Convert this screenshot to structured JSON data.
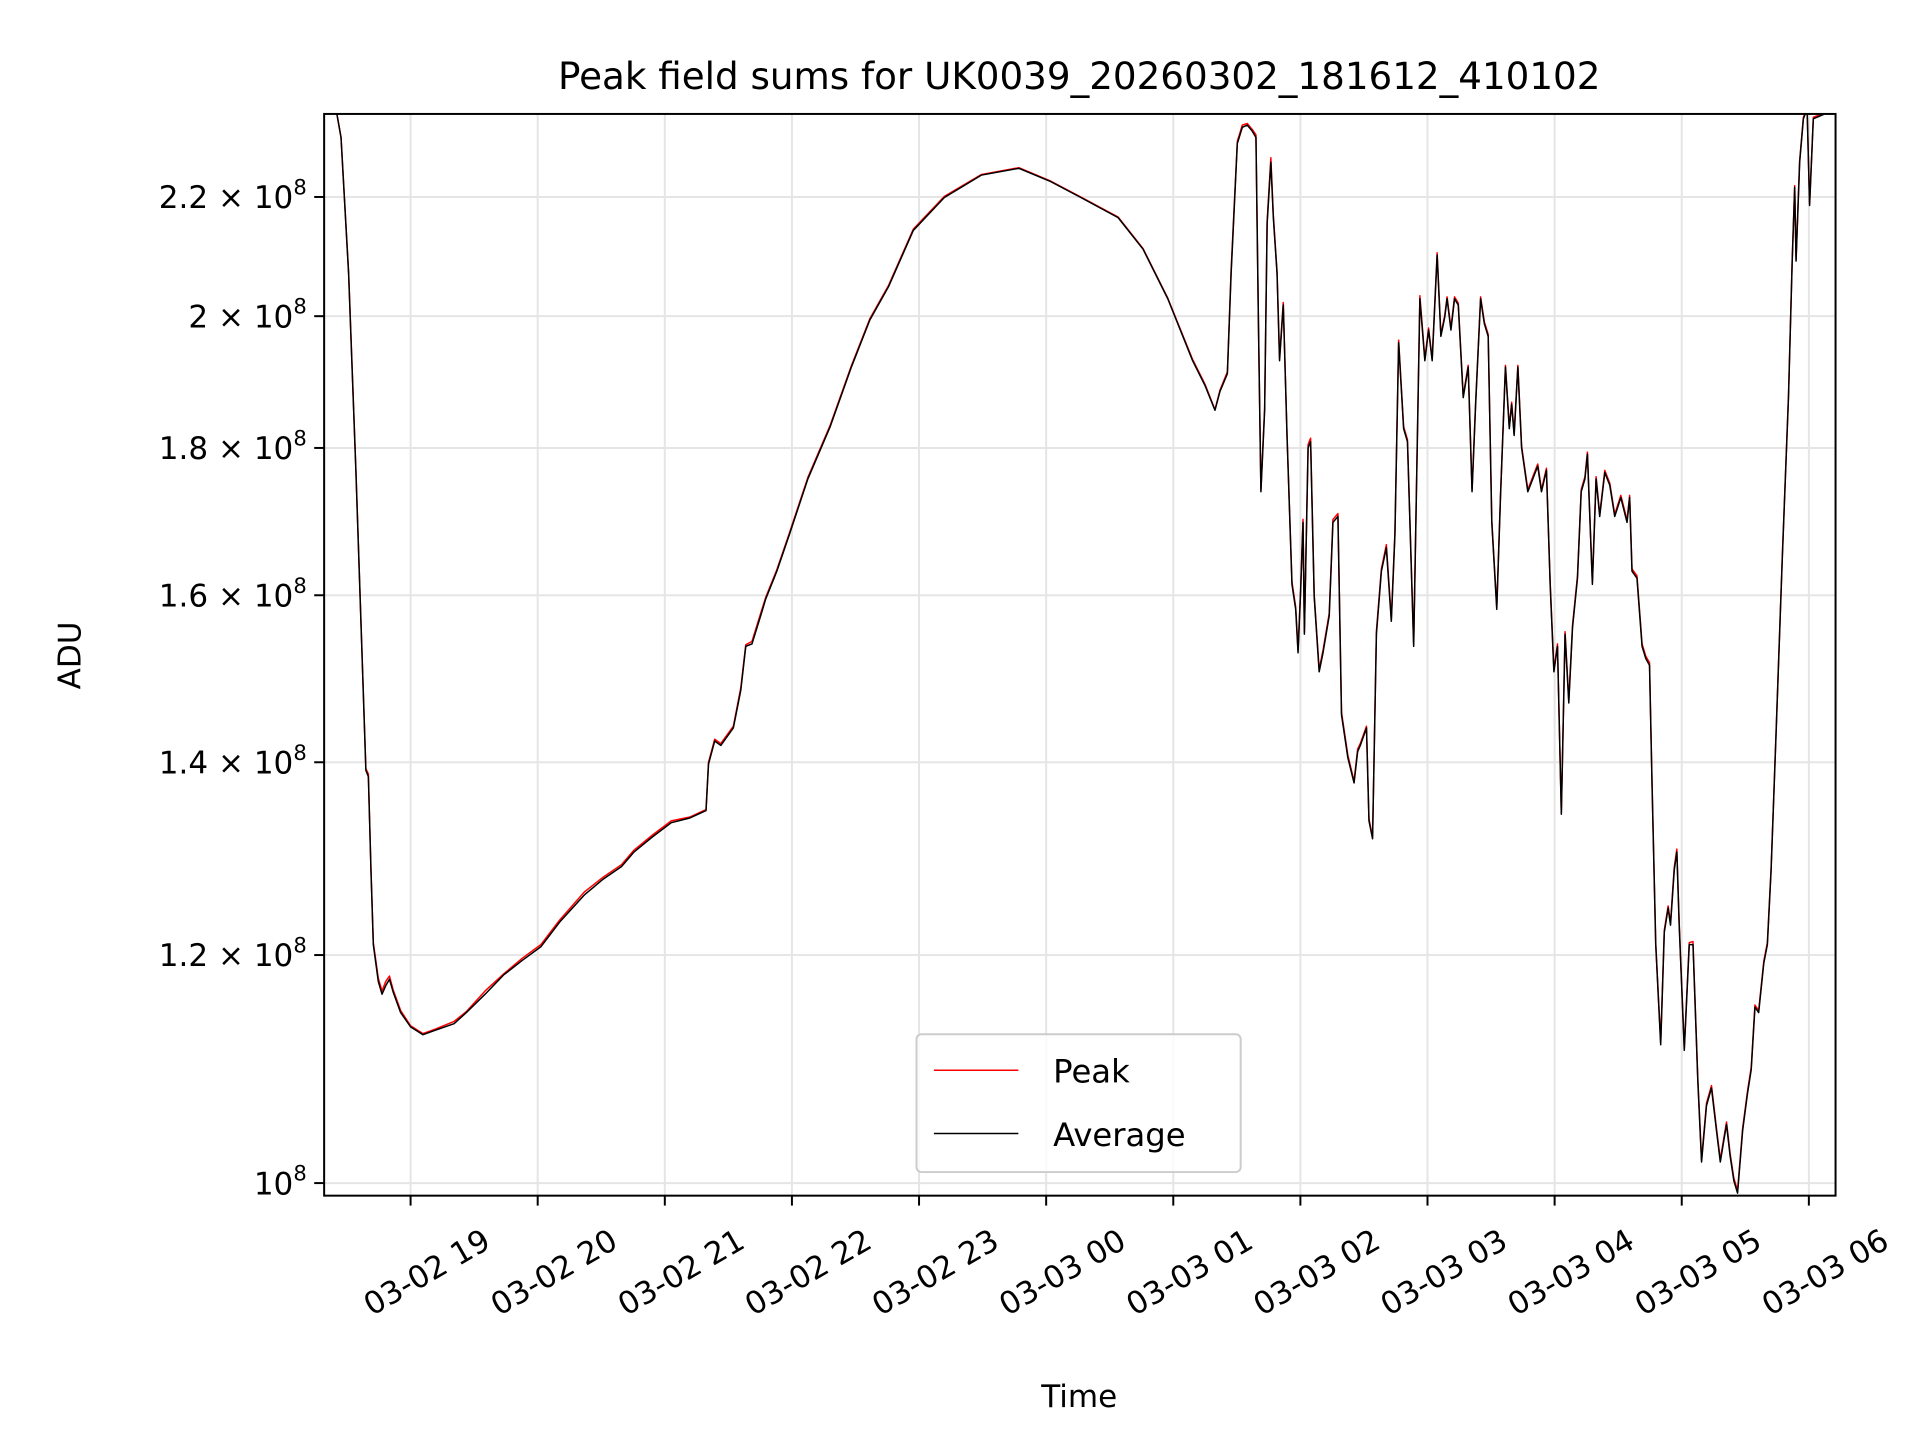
{
  "chart_data": {
    "type": "line",
    "title": "Peak field sums for UK0039_20260302_181612_410102",
    "xlabel": "Time",
    "ylabel": "ADU",
    "x_units": "hours since 03-02 18:00",
    "y_scale": "log",
    "y_units": "1e8 ADU",
    "xlim": [
      0.32,
      12.21
    ],
    "ylim": [
      0.99,
      2.351
    ],
    "grid": true,
    "legend_position": "lower-center",
    "x_ticks": [
      {
        "value": 1,
        "label": "03-02 19"
      },
      {
        "value": 2,
        "label": "03-02 20"
      },
      {
        "value": 3,
        "label": "03-02 21"
      },
      {
        "value": 4,
        "label": "03-02 22"
      },
      {
        "value": 5,
        "label": "03-02 23"
      },
      {
        "value": 6,
        "label": "03-03 00"
      },
      {
        "value": 7,
        "label": "03-03 01"
      },
      {
        "value": 8,
        "label": "03-03 02"
      },
      {
        "value": 9,
        "label": "03-03 03"
      },
      {
        "value": 10,
        "label": "03-03 04"
      },
      {
        "value": 11,
        "label": "03-03 05"
      },
      {
        "value": 12,
        "label": "03-03 06"
      }
    ],
    "y_ticks": [
      {
        "value": 1.0,
        "base": "10",
        "exp": "8"
      },
      {
        "value": 1.2,
        "base": "1.2 × 10",
        "exp": "8"
      },
      {
        "value": 1.4,
        "base": "1.4 × 10",
        "exp": "8"
      },
      {
        "value": 1.6,
        "base": "1.6 × 10",
        "exp": "8"
      },
      {
        "value": 1.8,
        "base": "1.8 × 10",
        "exp": "8"
      },
      {
        "value": 2.0,
        "base": "2 × 10",
        "exp": "8"
      },
      {
        "value": 2.2,
        "base": "2.2 × 10",
        "exp": "8"
      }
    ],
    "x": [
      0.326,
      0.414,
      0.453,
      0.512,
      0.57,
      0.609,
      0.648,
      0.668,
      0.688,
      0.707,
      0.746,
      0.775,
      0.805,
      0.834,
      0.863,
      0.922,
      1.0,
      1.098,
      1.195,
      1.342,
      1.439,
      1.586,
      1.732,
      1.879,
      2.025,
      2.172,
      2.367,
      2.514,
      2.66,
      2.758,
      2.904,
      3.051,
      3.197,
      3.324,
      3.344,
      3.393,
      3.441,
      3.539,
      3.598,
      3.637,
      3.686,
      3.754,
      3.793,
      3.881,
      3.979,
      4.125,
      4.301,
      4.467,
      4.613,
      4.76,
      4.955,
      5.199,
      5.492,
      5.785,
      6.029,
      6.273,
      6.566,
      6.762,
      6.957,
      7.152,
      7.25,
      7.328,
      7.367,
      7.426,
      7.455,
      7.504,
      7.543,
      7.582,
      7.621,
      7.65,
      7.67,
      7.689,
      7.719,
      7.738,
      7.768,
      7.787,
      7.816,
      7.836,
      7.865,
      7.895,
      7.934,
      7.963,
      7.982,
      8.002,
      8.021,
      8.031,
      8.061,
      8.08,
      8.109,
      8.148,
      8.178,
      8.227,
      8.256,
      8.295,
      8.324,
      8.373,
      8.422,
      8.451,
      8.471,
      8.52,
      8.539,
      8.568,
      8.598,
      8.637,
      8.676,
      8.715,
      8.744,
      8.773,
      8.812,
      8.842,
      8.891,
      8.94,
      8.979,
      9.008,
      9.037,
      9.076,
      9.105,
      9.135,
      9.154,
      9.184,
      9.213,
      9.242,
      9.281,
      9.32,
      9.35,
      9.379,
      9.418,
      9.447,
      9.477,
      9.506,
      9.545,
      9.574,
      9.613,
      9.643,
      9.662,
      9.682,
      9.711,
      9.74,
      9.789,
      9.828,
      9.867,
      9.896,
      9.936,
      9.965,
      9.994,
      10.023,
      10.053,
      10.082,
      10.111,
      10.141,
      10.18,
      10.209,
      10.238,
      10.258,
      10.297,
      10.326,
      10.355,
      10.395,
      10.434,
      10.473,
      10.521,
      10.57,
      10.59,
      10.609,
      10.648,
      10.688,
      10.717,
      10.746,
      10.766,
      10.795,
      10.834,
      10.863,
      10.893,
      10.912,
      10.941,
      10.961,
      10.98,
      11.02,
      11.059,
      11.088,
      11.127,
      11.156,
      11.195,
      11.234,
      11.273,
      11.303,
      11.332,
      11.352,
      11.381,
      11.41,
      11.439,
      11.479,
      11.518,
      11.547,
      11.576,
      11.605,
      11.645,
      11.674,
      11.703,
      11.742,
      11.791,
      11.84,
      11.869,
      11.889,
      11.899,
      11.928,
      11.957,
      11.986,
      12.006,
      12.035,
      12.211
    ],
    "series": [
      {
        "name": "Peak",
        "color": "#ff0000",
        "values": [
          2.36,
          2.36,
          2.307,
          2.072,
          1.768,
          1.57,
          1.393,
          1.387,
          1.286,
          1.212,
          1.178,
          1.166,
          1.175,
          1.18,
          1.167,
          1.148,
          1.134,
          1.127,
          1.131,
          1.138,
          1.147,
          1.166,
          1.182,
          1.197,
          1.21,
          1.234,
          1.262,
          1.277,
          1.29,
          1.305,
          1.321,
          1.336,
          1.34,
          1.348,
          1.4,
          1.426,
          1.421,
          1.441,
          1.486,
          1.538,
          1.542,
          1.577,
          1.597,
          1.633,
          1.681,
          1.758,
          1.833,
          1.922,
          1.996,
          2.05,
          2.144,
          2.201,
          2.24,
          2.252,
          2.229,
          2.2,
          2.165,
          2.111,
          2.029,
          1.932,
          1.894,
          1.856,
          1.885,
          1.913,
          2.075,
          2.3,
          2.33,
          2.333,
          2.322,
          2.312,
          1.992,
          1.741,
          1.858,
          2.158,
          2.27,
          2.168,
          2.072,
          1.934,
          2.022,
          1.821,
          1.617,
          1.585,
          1.531,
          1.609,
          1.7,
          1.554,
          1.805,
          1.814,
          1.601,
          1.508,
          1.531,
          1.577,
          1.7,
          1.708,
          1.457,
          1.408,
          1.379,
          1.415,
          1.421,
          1.441,
          1.338,
          1.319,
          1.555,
          1.634,
          1.666,
          1.57,
          1.682,
          1.962,
          1.831,
          1.812,
          1.539,
          2.033,
          1.933,
          1.981,
          1.933,
          2.104,
          1.971,
          2.001,
          2.031,
          1.981,
          2.031,
          2.021,
          1.877,
          1.923,
          1.741,
          1.867,
          2.031,
          1.991,
          1.971,
          1.699,
          1.585,
          1.733,
          1.923,
          1.831,
          1.867,
          1.821,
          1.923,
          1.803,
          1.741,
          1.759,
          1.777,
          1.741,
          1.771,
          1.617,
          1.508,
          1.539,
          1.345,
          1.554,
          1.471,
          1.562,
          1.625,
          1.741,
          1.759,
          1.794,
          1.617,
          1.759,
          1.707,
          1.768,
          1.75,
          1.707,
          1.733,
          1.699,
          1.733,
          1.634,
          1.625,
          1.539,
          1.524,
          1.516,
          1.38,
          1.212,
          1.119,
          1.224,
          1.248,
          1.231,
          1.287,
          1.306,
          1.231,
          1.114,
          1.212,
          1.213,
          1.087,
          1.019,
          1.066,
          1.081,
          1.045,
          1.019,
          1.037,
          1.05,
          1.024,
          1.004,
          0.994,
          1.045,
          1.077,
          1.097,
          1.153,
          1.148,
          1.194,
          1.212,
          1.286,
          1.434,
          1.65,
          1.877,
          2.093,
          2.22,
          2.093,
          2.265,
          2.345,
          2.36,
          2.188,
          2.345,
          2.36
        ]
      },
      {
        "name": "Average",
        "color": "#000000",
        "values": [
          2.36,
          2.36,
          2.307,
          2.069,
          1.765,
          1.567,
          1.391,
          1.384,
          1.284,
          1.21,
          1.175,
          1.163,
          1.171,
          1.177,
          1.165,
          1.146,
          1.133,
          1.126,
          1.13,
          1.136,
          1.146,
          1.163,
          1.181,
          1.195,
          1.208,
          1.232,
          1.259,
          1.275,
          1.288,
          1.303,
          1.319,
          1.334,
          1.339,
          1.347,
          1.398,
          1.424,
          1.419,
          1.439,
          1.483,
          1.536,
          1.539,
          1.574,
          1.595,
          1.631,
          1.679,
          1.756,
          1.831,
          1.92,
          1.994,
          2.048,
          2.142,
          2.199,
          2.239,
          2.251,
          2.228,
          2.199,
          2.164,
          2.11,
          2.028,
          1.93,
          1.892,
          1.855,
          1.883,
          1.91,
          2.069,
          2.296,
          2.326,
          2.33,
          2.319,
          2.307,
          1.988,
          1.738,
          1.855,
          2.153,
          2.262,
          2.164,
          2.069,
          1.93,
          2.018,
          1.818,
          1.614,
          1.582,
          1.528,
          1.606,
          1.696,
          1.551,
          1.8,
          1.809,
          1.598,
          1.505,
          1.528,
          1.574,
          1.696,
          1.704,
          1.454,
          1.405,
          1.377,
          1.412,
          1.419,
          1.439,
          1.336,
          1.317,
          1.551,
          1.631,
          1.662,
          1.567,
          1.679,
          1.958,
          1.828,
          1.809,
          1.536,
          2.028,
          1.93,
          1.978,
          1.93,
          2.1,
          1.968,
          1.998,
          2.028,
          1.978,
          2.028,
          2.018,
          1.874,
          1.92,
          1.738,
          1.864,
          2.028,
          1.988,
          1.968,
          1.696,
          1.582,
          1.73,
          1.92,
          1.828,
          1.864,
          1.818,
          1.92,
          1.8,
          1.738,
          1.756,
          1.774,
          1.738,
          1.768,
          1.614,
          1.505,
          1.536,
          1.343,
          1.551,
          1.468,
          1.559,
          1.622,
          1.738,
          1.756,
          1.791,
          1.614,
          1.756,
          1.704,
          1.765,
          1.747,
          1.704,
          1.73,
          1.696,
          1.73,
          1.631,
          1.622,
          1.536,
          1.521,
          1.513,
          1.377,
          1.21,
          1.117,
          1.222,
          1.246,
          1.229,
          1.284,
          1.303,
          1.229,
          1.112,
          1.21,
          1.21,
          1.085,
          1.017,
          1.064,
          1.079,
          1.043,
          1.017,
          1.035,
          1.048,
          1.022,
          1.002,
          0.992,
          1.043,
          1.075,
          1.095,
          1.151,
          1.146,
          1.192,
          1.21,
          1.284,
          1.432,
          1.647,
          1.874,
          2.09,
          2.217,
          2.09,
          2.262,
          2.342,
          2.36,
          2.185,
          2.342,
          2.36
        ]
      }
    ]
  }
}
